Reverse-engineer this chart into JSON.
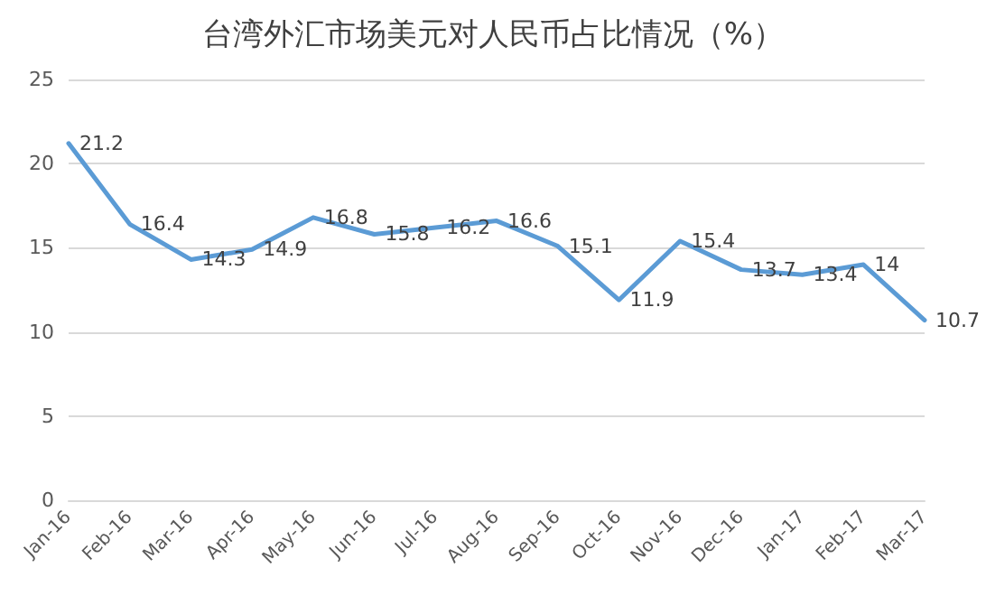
{
  "chart_data": {
    "type": "line",
    "title": "台湾外汇市场美元对人民币占比情况（%）",
    "categories": [
      "Jan-16",
      "Feb-16",
      "Mar-16",
      "Apr-16",
      "May-16",
      "Jun-16",
      "Jul-16",
      "Aug-16",
      "Sep-16",
      "Oct-16",
      "Nov-16",
      "Dec-16",
      "Jan-17",
      "Feb-17",
      "Mar-17"
    ],
    "series": [
      {
        "color": "#5b9bd5",
        "values": [
          21.2,
          16.4,
          14.3,
          14.9,
          16.8,
          15.8,
          16.2,
          16.6,
          15.1,
          11.9,
          15.4,
          13.7,
          13.4,
          14,
          10.7
        ]
      }
    ],
    "ylim": [
      0,
      25
    ],
    "yticks": [
      0,
      5,
      10,
      15,
      20,
      25
    ],
    "grid": "y",
    "data_labels": true,
    "marker": "none",
    "line_style": "solid"
  }
}
